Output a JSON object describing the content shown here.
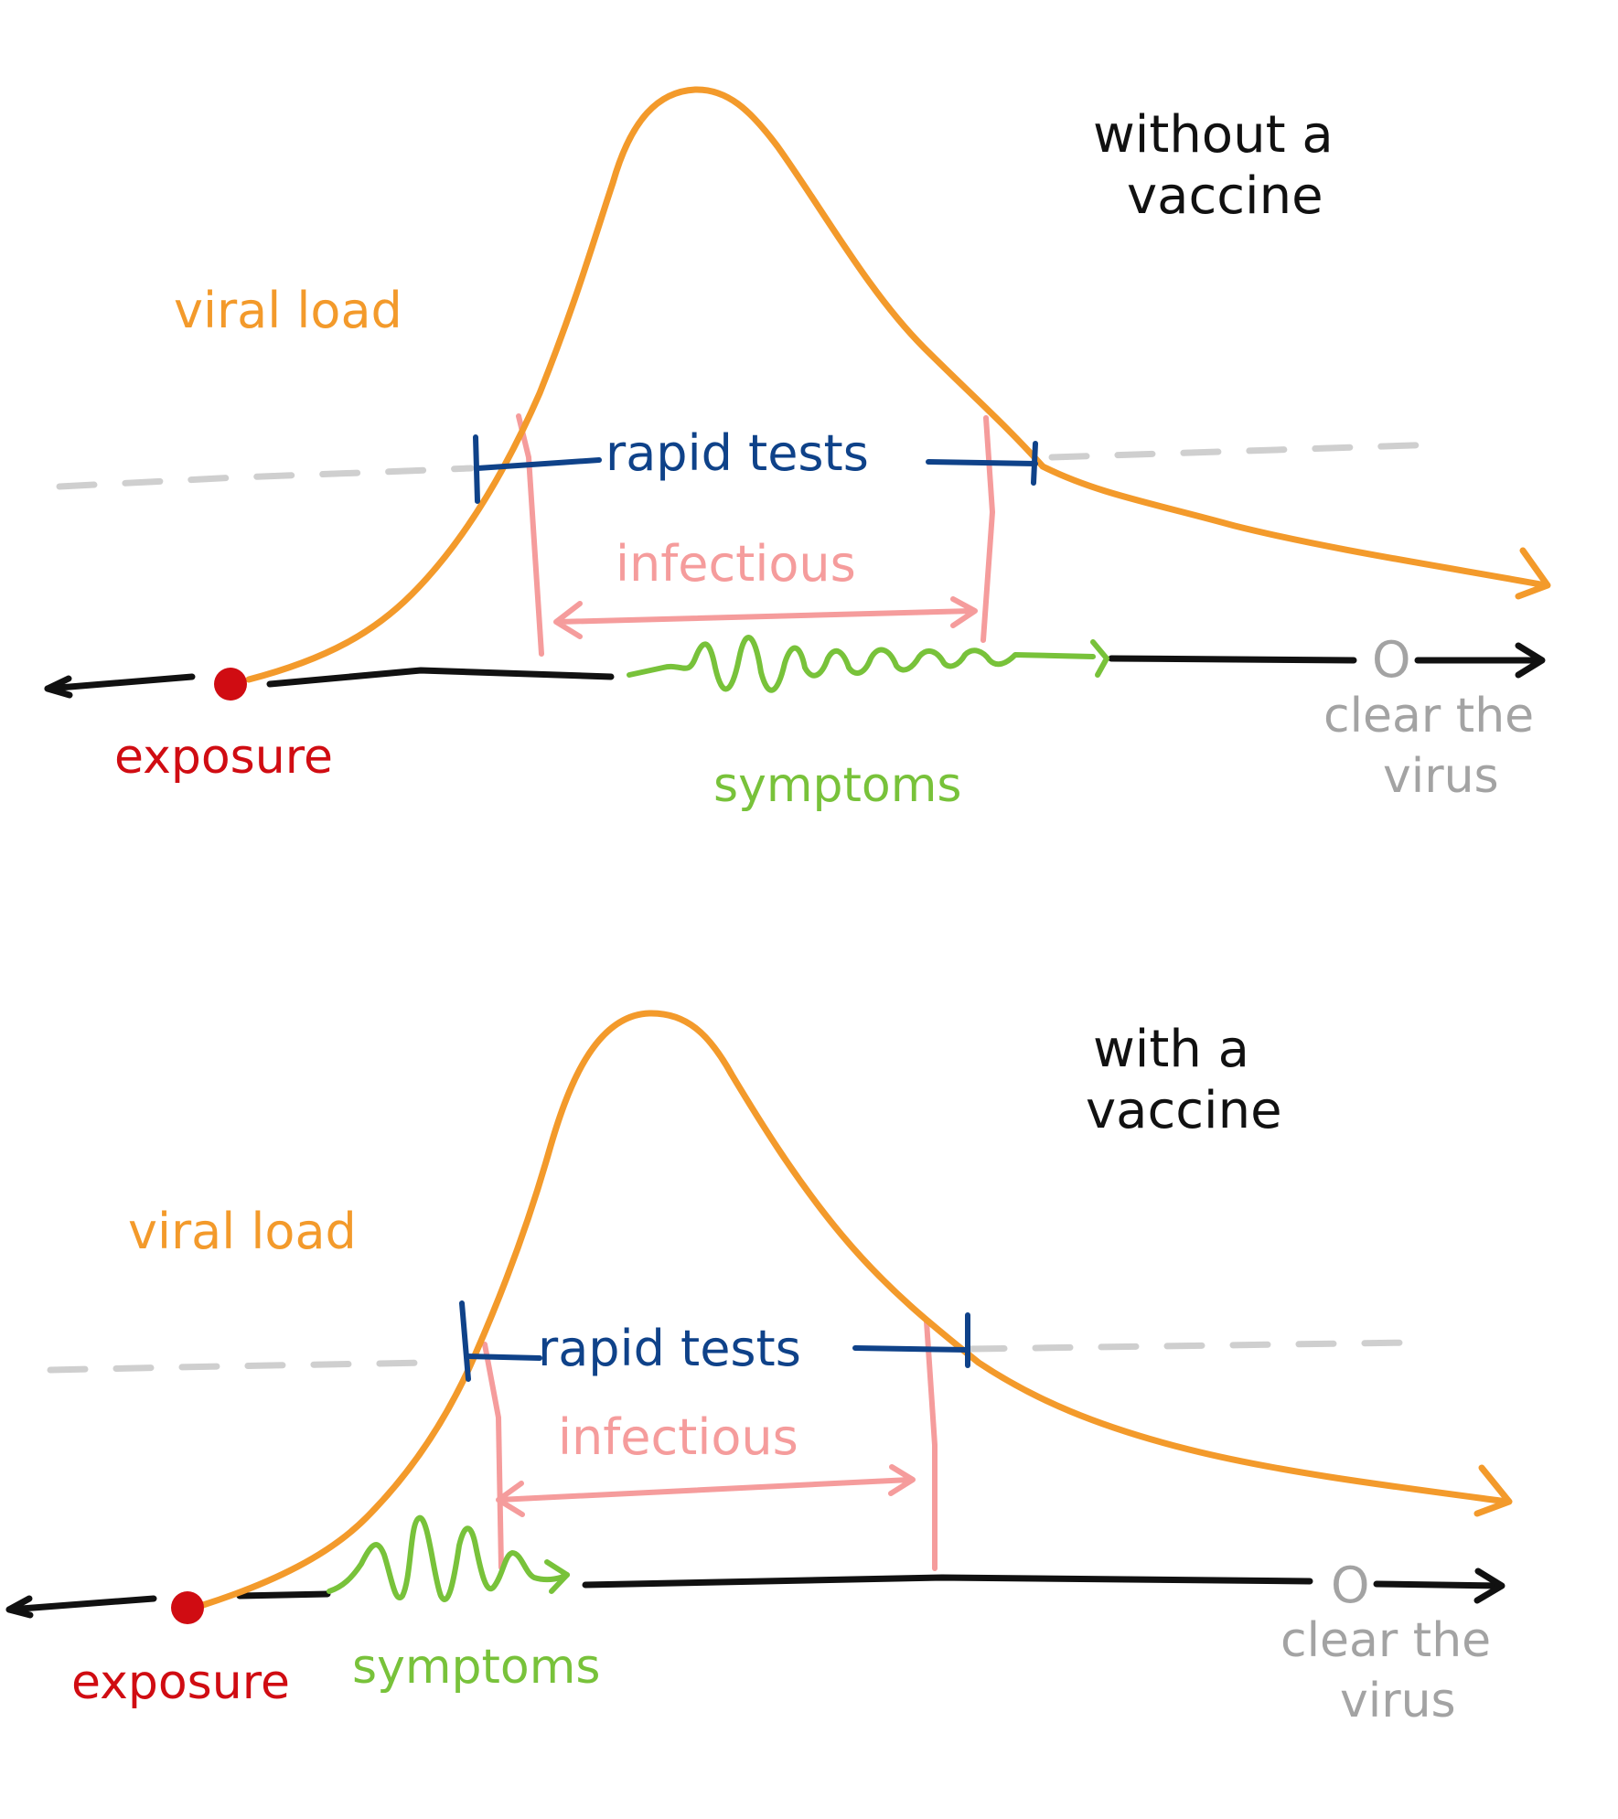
{
  "colors": {
    "viral_load": "#F39A2B",
    "rapid_tests": "#0F4289",
    "infectious": "#F59C9C",
    "symptoms": "#78C23A",
    "exposure": "#D00C12",
    "clear": "#A3A3A3",
    "threshold": "#CFCFCF",
    "timeline": "#111111",
    "title": "#111111"
  },
  "panels": [
    {
      "title_line1": "without a",
      "title_line2": "vaccine",
      "viral_load_label": "viral load",
      "rapid_tests_label": "rapid tests",
      "infectious_label": "infectious",
      "exposure_label": "exposure",
      "symptoms_label": "symptoms",
      "clear_label_line1": "clear the",
      "clear_label_line2": "virus",
      "clear_marker": "O"
    },
    {
      "title_line1": "with a",
      "title_line2": "vaccine",
      "viral_load_label": "viral load",
      "rapid_tests_label": "rapid tests",
      "infectious_label": "infectious",
      "exposure_label": "exposure",
      "symptoms_label": "symptoms",
      "clear_label_line1": "clear the",
      "clear_label_line2": "virus",
      "clear_marker": "O"
    }
  ]
}
